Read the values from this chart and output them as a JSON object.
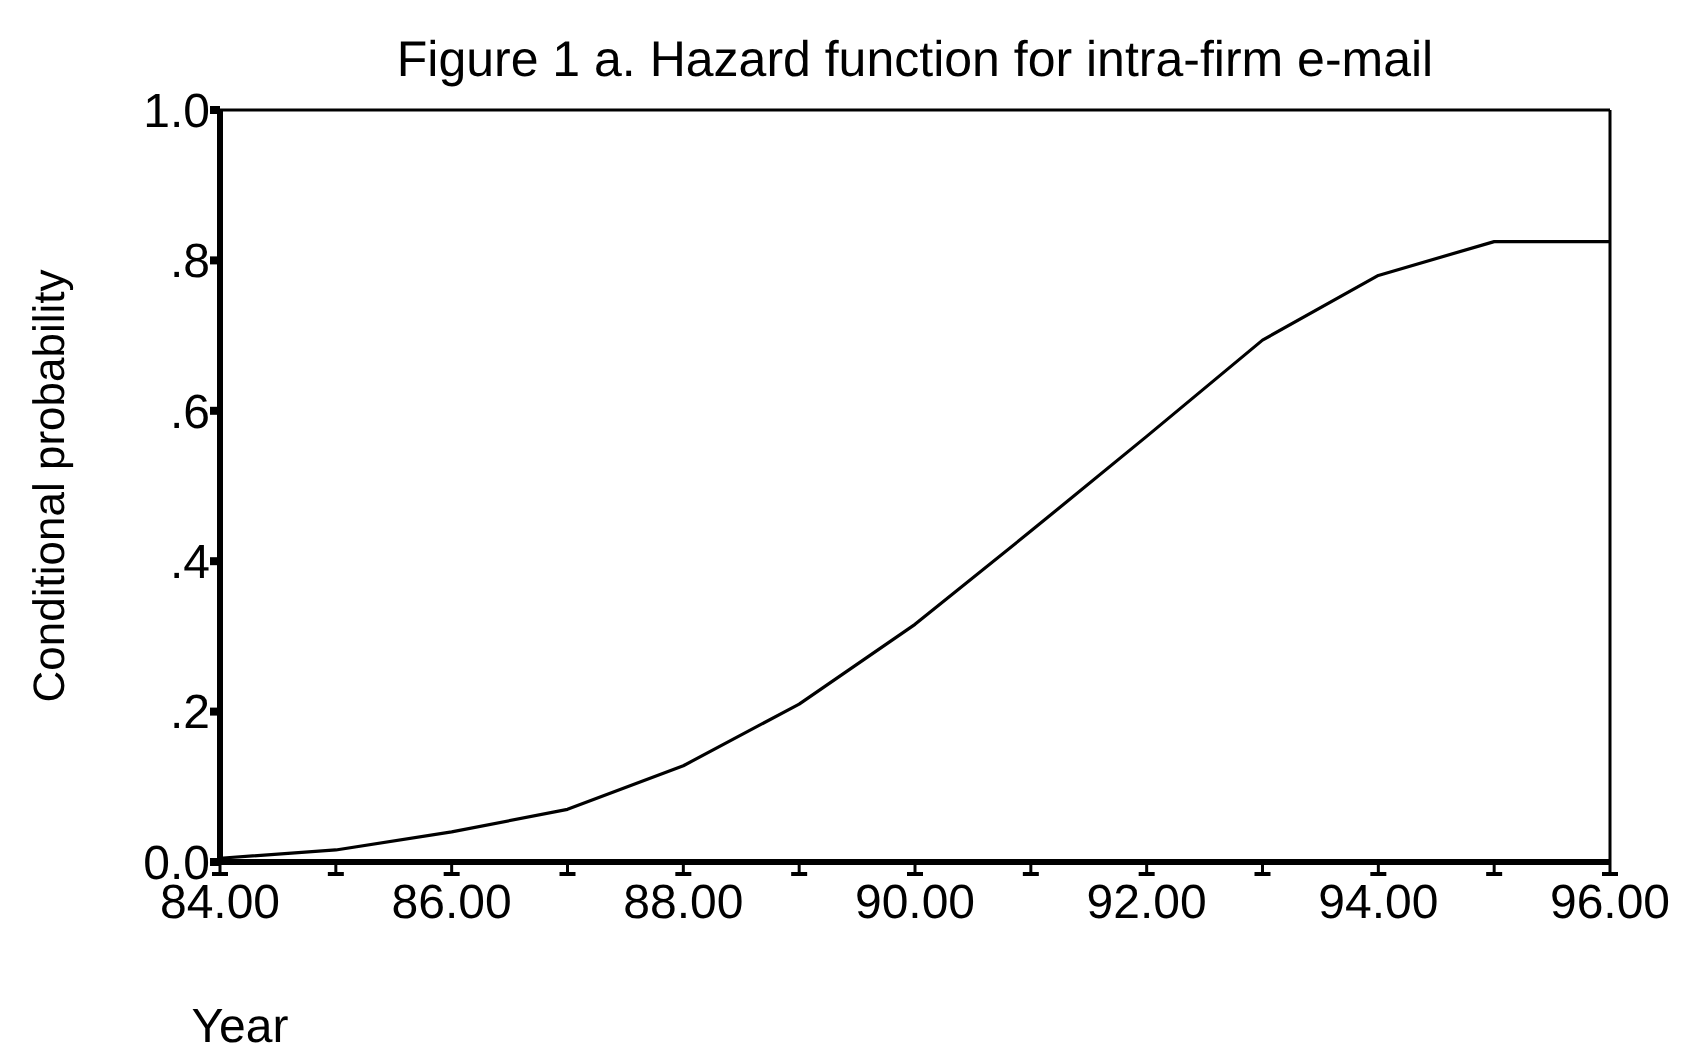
{
  "chart_data": {
    "type": "line",
    "title": "Figure 1 a. Hazard function for intra-firm e-mail",
    "xlabel": "Year",
    "ylabel": "Conditional probability",
    "x": [
      84,
      85,
      86,
      87,
      88,
      89,
      90,
      91,
      92,
      93,
      94,
      95,
      96
    ],
    "series": [
      {
        "color": "#000000",
        "values": [
          0.005,
          0.016,
          0.04,
          0.07,
          0.128,
          0.21,
          0.316,
          0.44,
          0.566,
          0.694,
          0.78,
          0.825,
          0.825
        ]
      }
    ],
    "xlim": [
      84,
      96
    ],
    "ylim": [
      0,
      1
    ],
    "xticks": [
      {
        "value": 84,
        "label": "84.00"
      },
      {
        "value": 85,
        "label": null
      },
      {
        "value": 86,
        "label": "86.00"
      },
      {
        "value": 87,
        "label": null
      },
      {
        "value": 88,
        "label": "88.00"
      },
      {
        "value": 89,
        "label": null
      },
      {
        "value": 90,
        "label": "90.00"
      },
      {
        "value": 91,
        "label": null
      },
      {
        "value": 92,
        "label": "92.00"
      },
      {
        "value": 93,
        "label": null
      },
      {
        "value": 94,
        "label": "94.00"
      },
      {
        "value": 95,
        "label": null
      },
      {
        "value": 96,
        "label": "96.00"
      }
    ],
    "yticks": [
      {
        "value": 0,
        "label": "0.0"
      },
      {
        "value": 0.2,
        "label": ".2"
      },
      {
        "value": 0.4,
        "label": ".4"
      },
      {
        "value": 0.6,
        "label": ".6"
      },
      {
        "value": 0.8,
        "label": ".8"
      },
      {
        "value": 1,
        "label": "1.0"
      }
    ],
    "grid": false,
    "marker": "none",
    "line_style": "solid"
  }
}
